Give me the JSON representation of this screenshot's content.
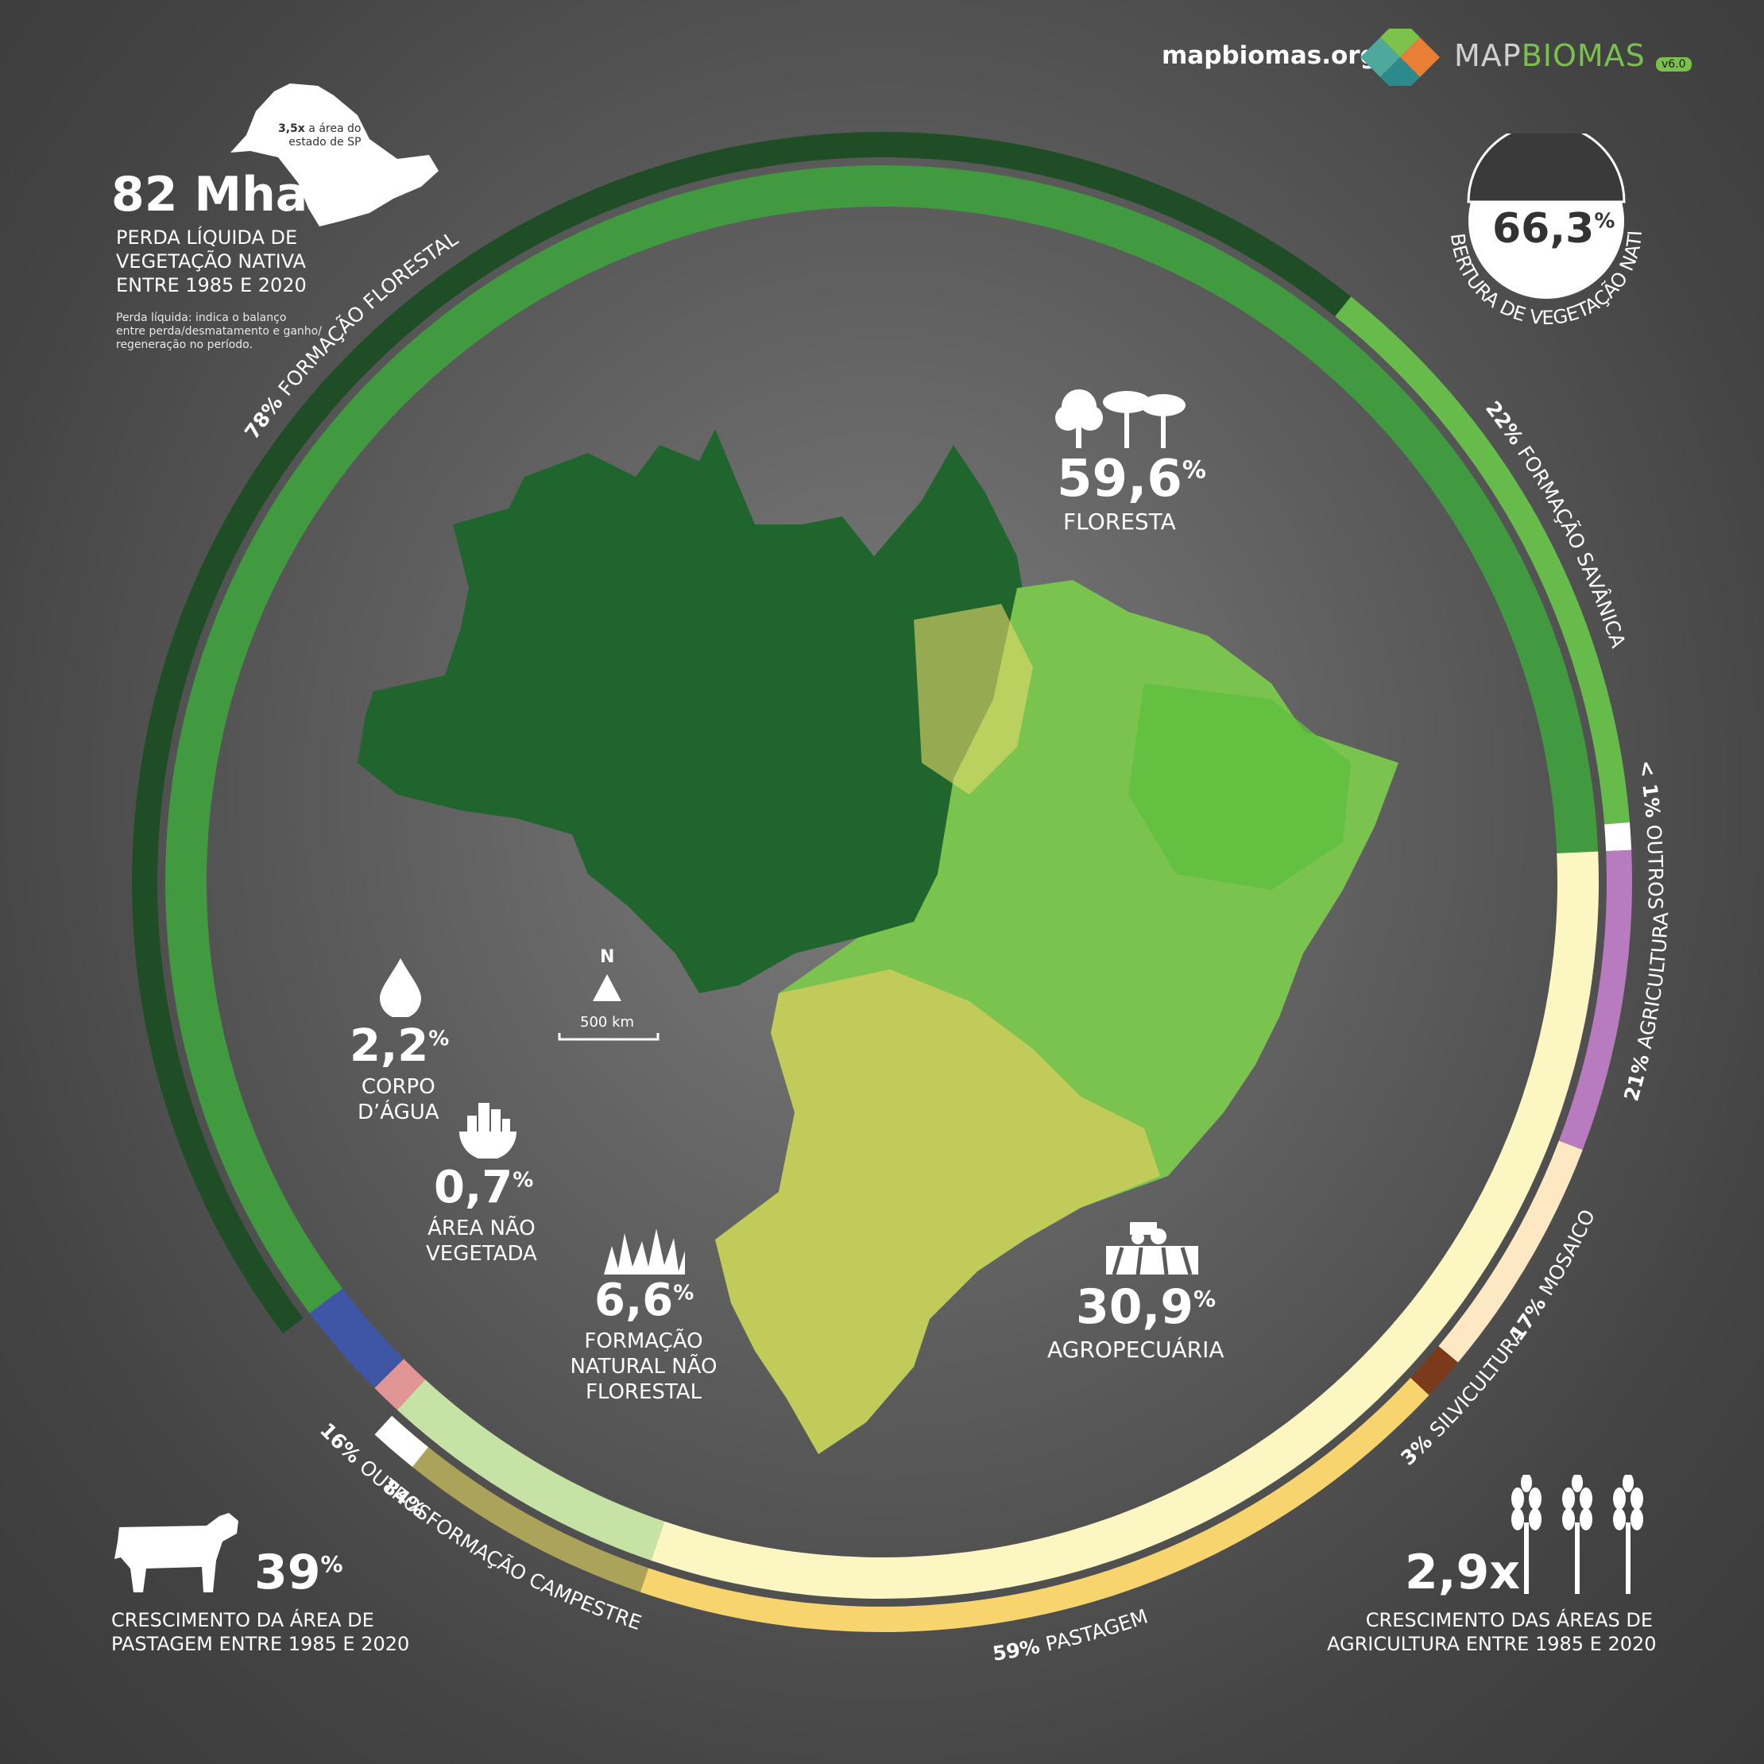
{
  "header": {
    "site": "mapbiomas.org",
    "brand_map": "MAP",
    "brand_biomas": "BIOMAS",
    "version": "v6.0"
  },
  "loss": {
    "sp_note_bold": "3,5x",
    "sp_note_1": "a área do",
    "sp_note_2": "estado de SP",
    "value": "82 Mha",
    "label_1": "PERDA LÍQUIDA DE",
    "label_2": "VEGETAÇÃO NATIVA",
    "label_3": "ENTRE 1985 E 2020",
    "note_1": "Perda líquida: indica o balanço",
    "note_2": "entre perda/desmatamento e ganho/",
    "note_3": "regeneração no período."
  },
  "native_cover": {
    "value": "66,3",
    "unit": "%",
    "label": "COBERTURA DE VEGETAÇÃO NATIVA"
  },
  "map": {
    "north": "N",
    "scale": "500 km"
  },
  "stats": {
    "floresta": {
      "value": "59,6",
      "unit": "%",
      "label": "FLORESTA"
    },
    "agua": {
      "value": "2,2",
      "unit": "%",
      "label_1": "CORPO",
      "label_2": "D’ÁGUA"
    },
    "nao_vegetada": {
      "value": "0,7",
      "unit": "%",
      "label_1": "ÁREA NÃO",
      "label_2": "VEGETADA"
    },
    "natural_nao_florestal": {
      "value": "6,6",
      "unit": "%",
      "label_1": "FORMAÇÃO",
      "label_2": "NATURAL NÃO",
      "label_3": "FLORESTAL"
    },
    "agropecuaria": {
      "value": "30,9",
      "unit": "%",
      "label": "AGROPECUÁRIA"
    }
  },
  "bottom_left": {
    "value": "39",
    "unit": "%",
    "label_1": "CRESCIMENTO DA ÁREA DE",
    "label_2": "PASTAGEM ENTRE 1985 E 2020"
  },
  "bottom_right": {
    "value": "2,9x",
    "label_1": "CRESCIMENTO DAS ÁREAS DE",
    "label_2": "AGRICULTURA ENTRE 1985 E 2020"
  },
  "chart_data": {
    "type": "donut",
    "inner_ring": [
      {
        "name": "FLORESTA",
        "value": 59.6,
        "color": "#419a40"
      },
      {
        "name": "AGROPECUÁRIA",
        "value": 30.9,
        "color": "#fbf6c2"
      },
      {
        "name": "FORMAÇÃO NATURAL NÃO FLORESTAL",
        "value": 6.6,
        "color": "#c6e3a5"
      },
      {
        "name": "ÁREA NÃO VEGETADA",
        "value": 0.7,
        "color": "#e29595"
      },
      {
        "name": "CORPO D’ÁGUA",
        "value": 2.2,
        "color": "#3f55a6"
      }
    ],
    "outer_ring": [
      {
        "group": "FLORESTA",
        "pct": "78%",
        "name": "FORMAÇÃO FLORESTAL",
        "value": 78,
        "color": "#1f4d25"
      },
      {
        "group": "FLORESTA",
        "pct": "22%",
        "name": "FORMAÇÃO SAVÂNICA",
        "value": 22,
        "color": "#66bb4a"
      },
      {
        "group": "FLORESTA",
        "pct": "< 1%",
        "name": "OUTROS",
        "value": 1,
        "color": "#ffffff"
      },
      {
        "group": "AGROPECUÁRIA",
        "pct": "21%",
        "name": "AGRICULTURA",
        "value": 21,
        "color": "#b97bbf"
      },
      {
        "group": "AGROPECUÁRIA",
        "pct": "17%",
        "name": "MOSAICO",
        "value": 17,
        "color": "#fce9c3"
      },
      {
        "group": "AGROPECUÁRIA",
        "pct": "3%",
        "name": "SILVICULTURA",
        "value": 3,
        "color": "#7b3b1a"
      },
      {
        "group": "AGROPECUÁRIA",
        "pct": "59%",
        "name": "PASTAGEM",
        "value": 59,
        "color": "#f8d46f"
      },
      {
        "group": "FORMAÇÃO NATURAL NÃO FLORESTAL",
        "pct": "84%",
        "name": "FORMAÇÃO CAMPESTRE",
        "value": 84,
        "color": "#aca35a"
      },
      {
        "group": "FORMAÇÃO NATURAL NÃO FLORESTAL",
        "pct": "16%",
        "name": "OUTROS",
        "value": 16,
        "color": "#ffffff"
      }
    ]
  }
}
